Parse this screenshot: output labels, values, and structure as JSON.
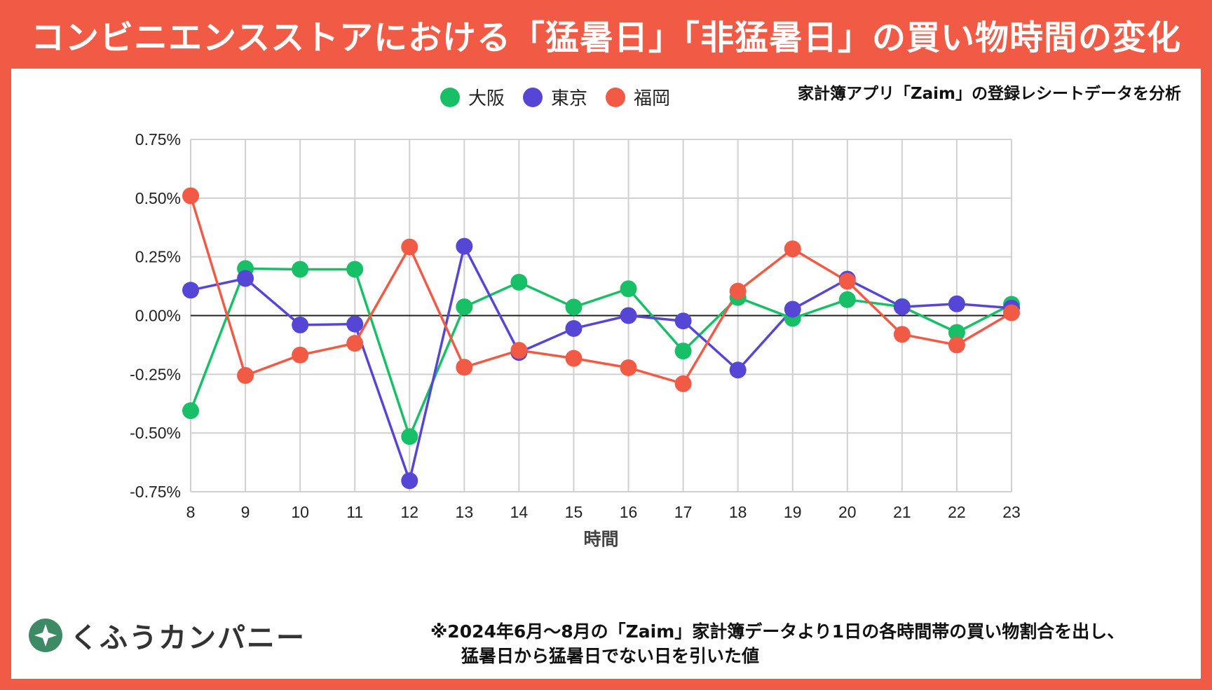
{
  "title": "コンビニエンスストアにおける「猛暑日」「非猛暑日」の買い物時間の変化",
  "subtitle": "家計簿アプリ「Zaim」の登録レシートデータを分析",
  "brand": {
    "name": "くふうカンパニー",
    "accent": "#3e8a66"
  },
  "footnote": {
    "line1": "※2024年6月～8月の「Zaim」家計簿データより1日の各時間帯の買い物割合を出し、",
    "line2": "猛暑日から猛暑日でない日を引いた値"
  },
  "colors": {
    "frame": "#f15a45",
    "grid": "#d0d0d0",
    "zero": "#222222"
  },
  "chart_data": {
    "type": "line",
    "xlabel": "時間",
    "ylabel": "",
    "x": [
      8,
      9,
      10,
      11,
      12,
      13,
      14,
      15,
      16,
      17,
      18,
      19,
      20,
      21,
      22,
      23
    ],
    "ylim": [
      -0.75,
      0.75
    ],
    "yticks": [
      0.75,
      0.5,
      0.25,
      0.0,
      -0.25,
      -0.5,
      -0.75
    ],
    "ytick_labels": [
      "0.75%",
      "0.50%",
      "0.25%",
      "0.00%",
      "-0.25%",
      "-0.50%",
      "-0.75%"
    ],
    "grid": true,
    "legend": "top",
    "series": [
      {
        "name": "大阪",
        "color": "#17c066",
        "values": [
          -0.405,
          0.2,
          0.197,
          0.197,
          -0.515,
          0.037,
          0.142,
          0.036,
          0.114,
          -0.151,
          0.077,
          -0.012,
          0.068,
          0.038,
          -0.072,
          0.048
        ]
      },
      {
        "name": "東京",
        "color": "#5546d6",
        "values": [
          0.108,
          0.158,
          -0.04,
          -0.036,
          -0.703,
          0.295,
          -0.157,
          -0.055,
          0.0,
          -0.023,
          -0.232,
          0.027,
          0.155,
          0.037,
          0.05,
          0.032
        ]
      },
      {
        "name": "福岡",
        "color": "#f15a45",
        "values": [
          0.51,
          -0.255,
          -0.168,
          -0.118,
          0.292,
          -0.22,
          -0.148,
          -0.182,
          -0.222,
          -0.29,
          0.104,
          0.284,
          0.146,
          -0.08,
          -0.125,
          0.012
        ]
      }
    ]
  }
}
